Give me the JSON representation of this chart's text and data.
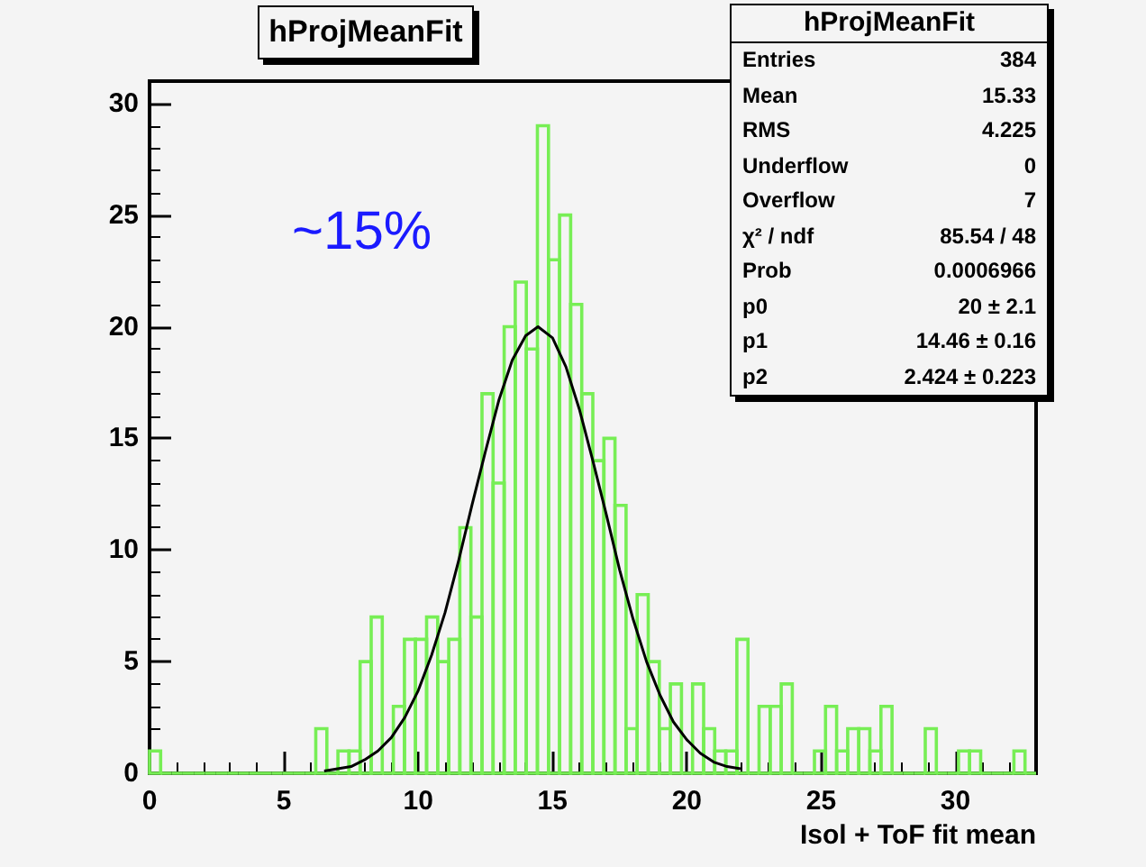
{
  "chart_data": {
    "type": "histogram",
    "title": "hProjMeanFit",
    "xlabel": "Isol + ToF fit mean",
    "xlim": [
      0,
      33
    ],
    "xticks": [
      0,
      5,
      10,
      15,
      20,
      25,
      30
    ],
    "ylim": [
      0,
      31
    ],
    "yticks": [
      0,
      5,
      10,
      15,
      20,
      25,
      30
    ],
    "marker": "none",
    "annotations": [
      "~15%",
      "hProjMeanFit",
      "Entries",
      "384",
      "Mean",
      "15.33",
      "RMS",
      "4.225",
      "Underflow",
      "0",
      "Overflow",
      "7",
      "χ² / ndf",
      "85.54 / 48",
      "Prob",
      "0.0006966",
      "p0",
      "20 ± 2.1",
      "p1",
      "14.46 ± 0.16",
      "p2",
      "2.424 ± 0.223"
    ],
    "series": [
      {
        "color": "#77ee55",
        "bins": [
          0,
          0.4125,
          0.825,
          1.2375,
          1.65,
          2.0625,
          2.475,
          2.8875,
          3.3,
          3.7125,
          4.125,
          4.5375,
          4.95,
          5.3625,
          5.775,
          6.1875,
          6.6,
          7.0125,
          7.425,
          7.8375,
          8.25,
          8.6625,
          9.075,
          9.4875,
          9.9,
          10.3125,
          10.725,
          11.1375,
          11.55,
          11.9625,
          12.375,
          12.7875,
          13.2,
          13.6125,
          14.025,
          14.4375,
          14.85,
          15.2625,
          15.675,
          16.0875,
          16.5,
          16.9125,
          17.325,
          17.7375,
          18.15,
          18.5625,
          18.975,
          19.3875,
          19.8,
          20.2125,
          20.625,
          21.0375,
          21.45,
          21.8625,
          22.275,
          22.6875,
          23.1,
          23.5125,
          23.925,
          24.3375,
          24.75,
          25.1625,
          25.575,
          25.9875,
          26.4,
          26.8125,
          27.225,
          27.6375,
          28.05,
          28.4625,
          28.875,
          29.2875,
          29.7,
          30.1125,
          30.525,
          30.9375,
          31.35,
          31.7625,
          32.175,
          32.5875,
          33
        ],
        "values": [
          1,
          0,
          0,
          0,
          0,
          0,
          0,
          0,
          0,
          0,
          0,
          0,
          0,
          0,
          0,
          2,
          0,
          1,
          1,
          5,
          7,
          0,
          3,
          6,
          6,
          7,
          5,
          6,
          11,
          7,
          17,
          13,
          20,
          22,
          19,
          29,
          23,
          25,
          21,
          17,
          14,
          15,
          12,
          2,
          8,
          5,
          2,
          4,
          0,
          4,
          2,
          1,
          1,
          6,
          0,
          3,
          3,
          4,
          0,
          0,
          1,
          3,
          1,
          2,
          2,
          1,
          3,
          0,
          0,
          0,
          2,
          0,
          0,
          1,
          1,
          0,
          0,
          0,
          1,
          0
        ]
      },
      {
        "type": "line",
        "color": "#000000",
        "x": [
          6.5,
          7,
          7.5,
          8,
          8.5,
          9,
          9.5,
          10,
          10.5,
          11,
          11.5,
          12,
          12.5,
          13,
          13.5,
          14,
          14.46,
          15,
          15.5,
          16,
          16.5,
          17,
          17.5,
          18,
          18.5,
          19,
          19.5,
          20,
          20.5,
          21,
          21.5,
          22
        ],
        "values": [
          0.1,
          0.2,
          0.3,
          0.6,
          1.0,
          1.6,
          2.5,
          3.7,
          5.3,
          7.2,
          9.5,
          12.0,
          14.4,
          16.7,
          18.5,
          19.6,
          20,
          19.5,
          18.2,
          16.3,
          14.0,
          11.6,
          9.1,
          6.9,
          5.0,
          3.5,
          2.3,
          1.5,
          0.9,
          0.5,
          0.3,
          0.2
        ]
      }
    ]
  }
}
